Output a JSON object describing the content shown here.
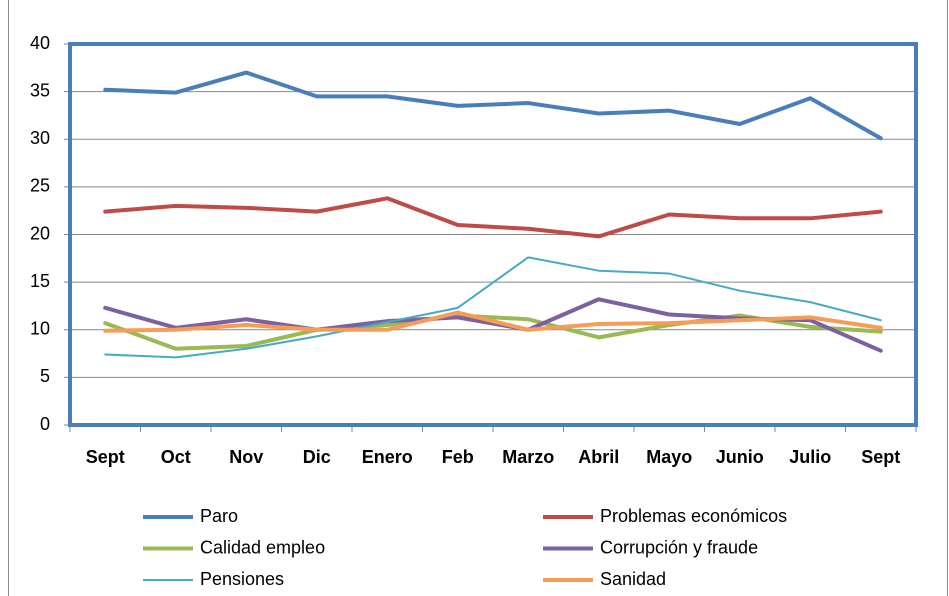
{
  "chart_data": {
    "type": "line",
    "categories": [
      "Sept",
      "Oct",
      "Nov",
      "Dic",
      "Enero",
      "Feb",
      "Marzo",
      "Abril",
      "Mayo",
      "Junio",
      "Julio",
      "Sept"
    ],
    "series": [
      {
        "name": "Paro",
        "color": "#4a7ebb",
        "linewidth": 4,
        "values": [
          35.2,
          34.9,
          37,
          34.5,
          34.5,
          33.5,
          33.8,
          32.7,
          33,
          31.6,
          34.3,
          30.1
        ]
      },
      {
        "name": "Problemas económicos",
        "color": "#be4b48",
        "linewidth": 4,
        "values": [
          22.4,
          23,
          22.8,
          22.4,
          23.8,
          21,
          20.6,
          19.8,
          22.1,
          21.7,
          21.7,
          22.4
        ]
      },
      {
        "name": "Calidad empleo",
        "color": "#98b954",
        "linewidth": 4,
        "values": [
          10.7,
          8,
          8.3,
          10,
          10.5,
          11.5,
          11.1,
          9.2,
          10.5,
          11.5,
          10.3,
          9.8
        ]
      },
      {
        "name": "Corrupción y fraude",
        "color": "#7d60a0",
        "linewidth": 4,
        "values": [
          12.3,
          10.2,
          11.1,
          10,
          10.9,
          11.3,
          10,
          13.2,
          11.6,
          11.2,
          11,
          7.8
        ]
      },
      {
        "name": "Pensiones",
        "color": "#46aac5",
        "linewidth": 2,
        "values": [
          7.4,
          7.1,
          8,
          9.3,
          10.8,
          12.3,
          17.6,
          16.2,
          15.9,
          14.1,
          12.9,
          11
        ]
      },
      {
        "name": "Sanidad",
        "color": "#f59d56",
        "linewidth": 4,
        "values": [
          9.9,
          10,
          10.5,
          10,
          10,
          11.8,
          10,
          10.6,
          10.7,
          11,
          11.3,
          10.2
        ]
      }
    ],
    "ylim": [
      0,
      40
    ],
    "yticks": [
      0,
      5,
      10,
      15,
      20,
      25,
      30,
      35,
      40
    ],
    "grid": true,
    "legend": "bottom"
  }
}
